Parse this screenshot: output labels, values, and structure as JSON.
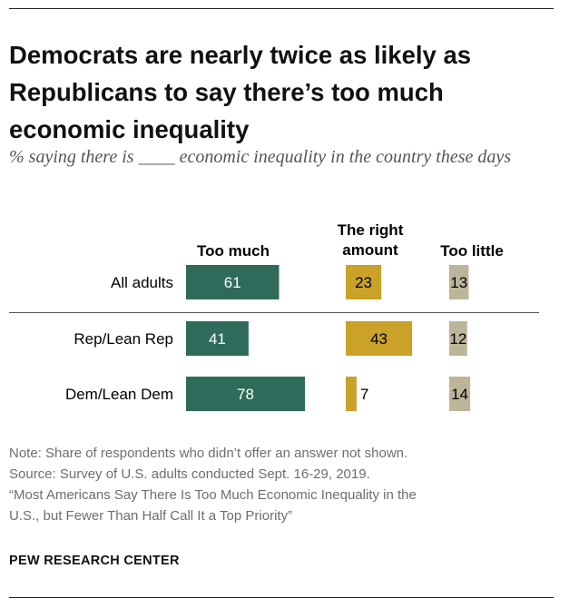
{
  "header": {
    "title": "Democrats are nearly twice as likely as Republicans to say there’s too much economic inequality",
    "subtitle": "% saying there is ____ economic inequality in the country these days"
  },
  "chart_data": {
    "type": "bar",
    "categories": [
      "All adults",
      "Rep/Lean Rep",
      "Dem/Lean Dem"
    ],
    "series": [
      {
        "name": "Too much",
        "values": [
          61,
          41,
          78
        ],
        "color": "#2e6b5a"
      },
      {
        "name": "The right amount",
        "values": [
          23,
          43,
          7
        ],
        "color": "#c9a227"
      },
      {
        "name": "Too little",
        "values": [
          13,
          12,
          14
        ],
        "color": "#bdb59a"
      }
    ],
    "column_headers": [
      "Too much",
      "The right amount",
      "Too little"
    ],
    "title": "Democrats are nearly twice as likely as Republicans to say there’s too much economic inequality",
    "subtitle": "% saying there is ____ economic inequality in the country these days",
    "xlabel": "",
    "ylabel": "",
    "xlim": [
      0,
      100
    ],
    "grid": false,
    "legend": "column headers above bars"
  },
  "notes": {
    "lines": [
      "Note: Share of respondents who didn’t offer an answer not shown.",
      "Source: Survey of U.S. adults conducted Sept. 16-29, 2019.",
      "“Most Americans Say There Is Too Much Economic Inequality in the",
      "U.S., but Fewer Than Half Call It a Top Priority”"
    ]
  },
  "source_org": "PEW RESEARCH CENTER"
}
